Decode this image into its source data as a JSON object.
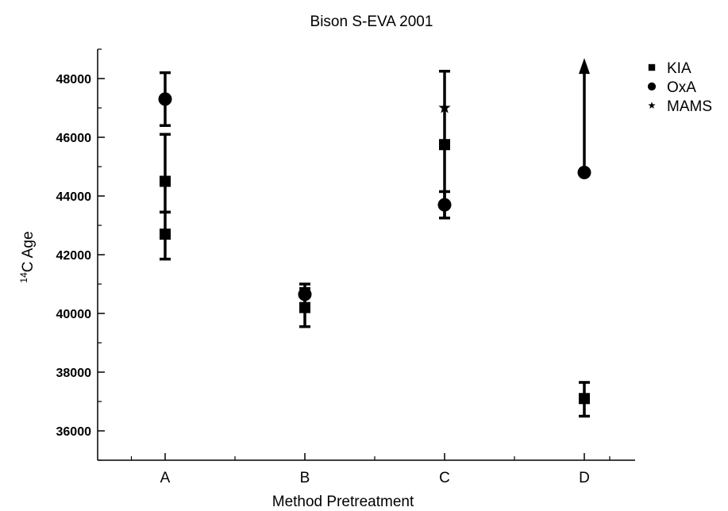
{
  "chart_data": {
    "type": "scatter",
    "title": "Bison S-EVA 2001",
    "xlabel": "Method Pretreatment",
    "ylabel_prefix": "14",
    "ylabel_main": "C Age",
    "categories": [
      "A",
      "B",
      "C",
      "D"
    ],
    "ylim": [
      35000,
      49000
    ],
    "y_ticks": [
      36000,
      38000,
      40000,
      42000,
      44000,
      46000,
      48000
    ],
    "y_tick_labels": [
      "36000",
      "38000",
      "40000",
      "42000",
      "44000",
      "46000",
      "48000"
    ],
    "grid": false,
    "legend_position": "top-right",
    "series": [
      {
        "name": "KIA",
        "marker": "square",
        "points": [
          {
            "x": "A",
            "y": 44500,
            "err_low": 43450,
            "err_high": 46100
          },
          {
            "x": "A",
            "y": 42700,
            "err_low": 41850,
            "err_high": 43450
          },
          {
            "x": "B",
            "y": 40200,
            "err_low": 39550,
            "err_high": 40850
          },
          {
            "x": "C",
            "y": 45750,
            "err_low": 43250,
            "err_high": 48250
          },
          {
            "x": "D",
            "y": 37100,
            "err_low": 36500,
            "err_high": 37650
          }
        ]
      },
      {
        "name": "OxA",
        "marker": "circle",
        "points": [
          {
            "x": "A",
            "y": 47300,
            "err_low": 46400,
            "err_high": 48200
          },
          {
            "x": "B",
            "y": 40650,
            "err_low": 40300,
            "err_high": 41000
          },
          {
            "x": "C",
            "y": 43700,
            "err_low": 43250,
            "err_high": 44150
          },
          {
            "x": "D",
            "y": 44800,
            "err_low": 44800,
            "err_high": 48700,
            "lower_limit": true
          }
        ]
      },
      {
        "name": "MAMS",
        "marker": "star",
        "points": [
          {
            "x": "C",
            "y": 47000
          }
        ]
      }
    ]
  }
}
